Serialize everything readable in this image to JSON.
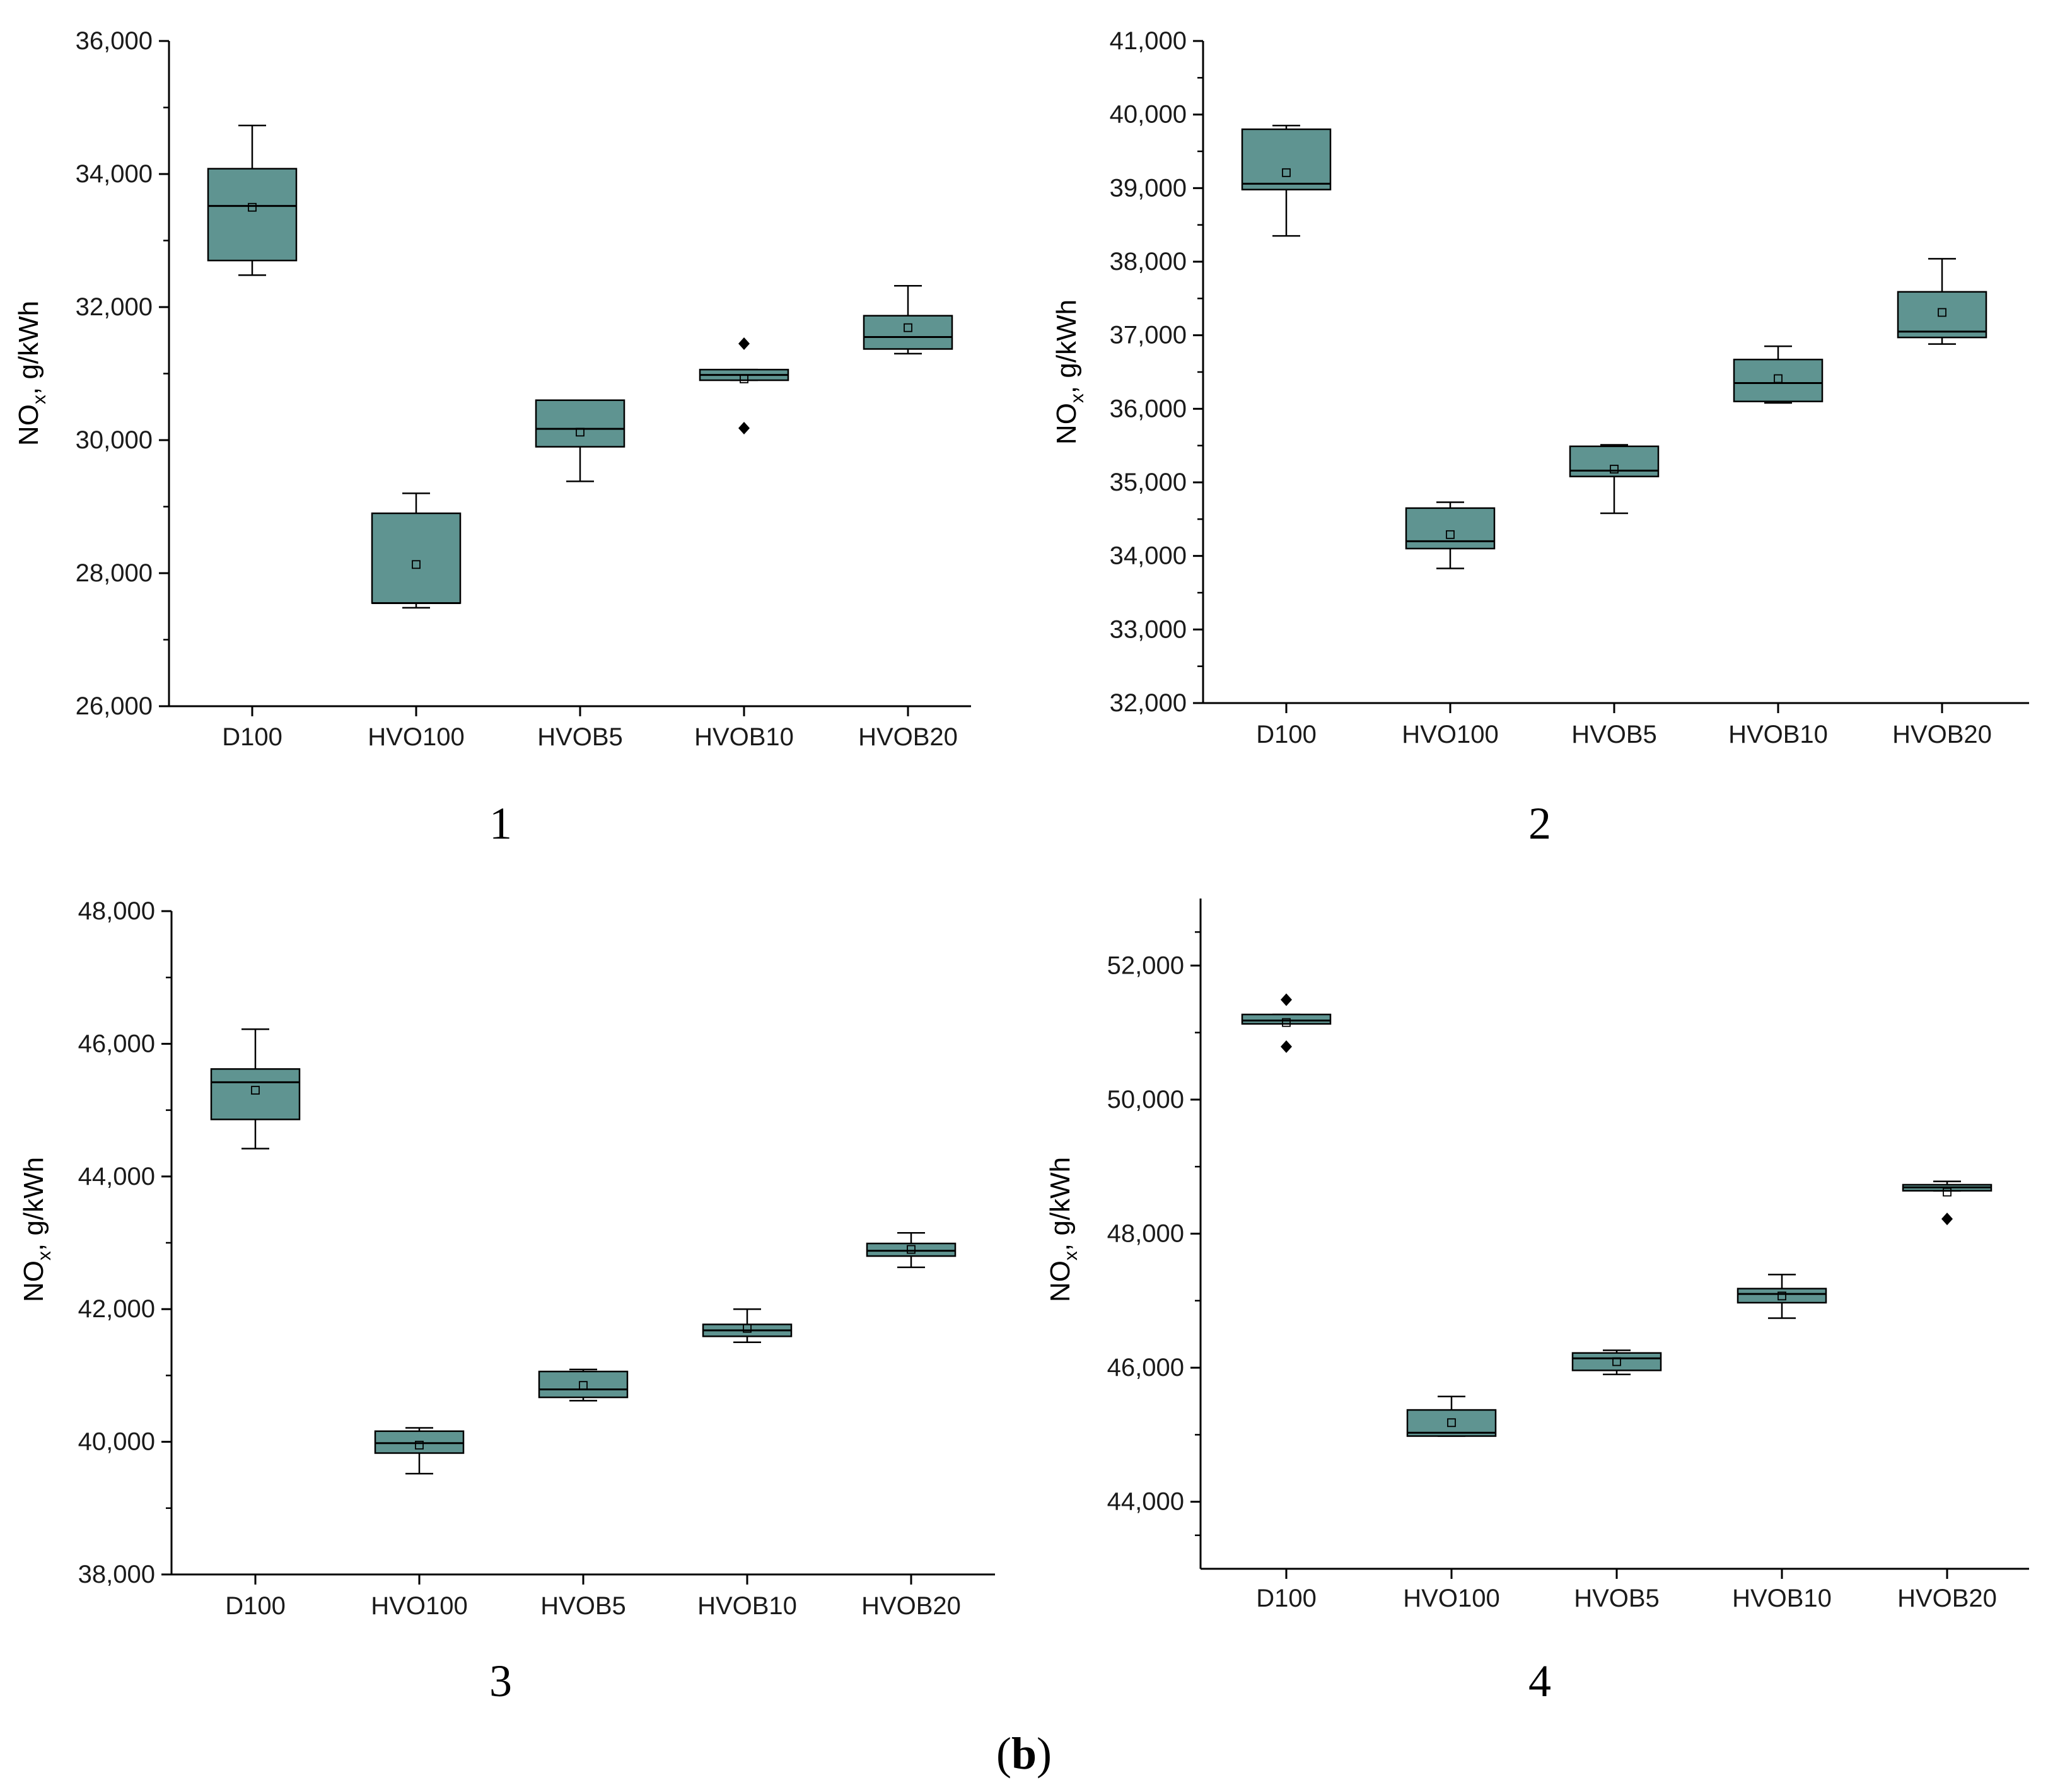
{
  "figure": {
    "label_open": "(",
    "label_letter": "b",
    "label_close": ")",
    "box_fill": "#5f9491",
    "outlier_fill": "#000000"
  },
  "chart_data": [
    {
      "type": "box",
      "panel": "1",
      "ylabel_main": "NO",
      "ylabel_sub": "x",
      "ylabel_rest": ", g/kWh",
      "ylim": [
        26000,
        36000
      ],
      "yticks": [
        26000,
        28000,
        30000,
        32000,
        34000,
        36000
      ],
      "ytick_labels": [
        "26,000",
        "28,000",
        "30,000",
        "32,000",
        "34,000",
        "36,000"
      ],
      "categories": [
        "D100",
        "HVO100",
        "HVOB5",
        "HVOB10",
        "HVOB20"
      ],
      "boxes": [
        {
          "whisker_low": 32480,
          "q1": 32700,
          "median": 33520,
          "q3": 34080,
          "whisker_high": 34730,
          "mean": 33500,
          "outliers": []
        },
        {
          "whisker_low": 27480,
          "q1": 27550,
          "median": 27550,
          "q3": 28900,
          "whisker_high": 29200,
          "mean": 28130,
          "outliers": []
        },
        {
          "whisker_low": 29380,
          "q1": 29900,
          "median": 30170,
          "q3": 30600,
          "whisker_high": 30600,
          "mean": 30120,
          "outliers": []
        },
        {
          "whisker_low": 30900,
          "q1": 30900,
          "median": 30980,
          "q3": 31060,
          "whisker_high": 31060,
          "mean": 30920,
          "outliers": [
            31450,
            30180
          ]
        },
        {
          "whisker_low": 31300,
          "q1": 31370,
          "median": 31550,
          "q3": 31870,
          "whisker_high": 32320,
          "mean": 31690,
          "outliers": []
        }
      ]
    },
    {
      "type": "box",
      "panel": "2",
      "ylabel_main": "NO",
      "ylabel_sub": "x",
      "ylabel_rest": ", g/kWh",
      "ylim": [
        32000,
        41000
      ],
      "yticks": [
        32000,
        33000,
        34000,
        35000,
        36000,
        37000,
        38000,
        39000,
        40000,
        41000
      ],
      "ytick_labels": [
        "32,000",
        "33,000",
        "34,000",
        "35,000",
        "36,000",
        "37,000",
        "38,000",
        "39,000",
        "40,000",
        "41,000"
      ],
      "categories": [
        "D100",
        "HVO100",
        "HVOB5",
        "HVOB10",
        "HVOB20"
      ],
      "boxes": [
        {
          "whisker_low": 38350,
          "q1": 38980,
          "median": 39060,
          "q3": 39800,
          "whisker_high": 39850,
          "mean": 39210,
          "outliers": []
        },
        {
          "whisker_low": 33830,
          "q1": 34100,
          "median": 34200,
          "q3": 34650,
          "whisker_high": 34730,
          "mean": 34290,
          "outliers": []
        },
        {
          "whisker_low": 34580,
          "q1": 35080,
          "median": 35160,
          "q3": 35490,
          "whisker_high": 35510,
          "mean": 35180,
          "outliers": []
        },
        {
          "whisker_low": 36080,
          "q1": 36100,
          "median": 36350,
          "q3": 36670,
          "whisker_high": 36850,
          "mean": 36410,
          "outliers": []
        },
        {
          "whisker_low": 36880,
          "q1": 36970,
          "median": 37050,
          "q3": 37590,
          "whisker_high": 38040,
          "mean": 37310,
          "outliers": []
        }
      ]
    },
    {
      "type": "box",
      "panel": "3",
      "ylabel_main": "NO",
      "ylabel_sub": "x",
      "ylabel_rest": ", g/kWh",
      "ylim": [
        38000,
        48000
      ],
      "yticks": [
        38000,
        40000,
        42000,
        44000,
        46000,
        48000
      ],
      "ytick_labels": [
        "38,000",
        "40,000",
        "42,000",
        "44,000",
        "46,000",
        "48,000"
      ],
      "categories": [
        "D100",
        "HVO100",
        "HVOB5",
        "HVOB10",
        "HVOB20"
      ],
      "boxes": [
        {
          "whisker_low": 44420,
          "q1": 44860,
          "median": 45420,
          "q3": 45620,
          "whisker_high": 46220,
          "mean": 45300,
          "outliers": []
        },
        {
          "whisker_low": 39520,
          "q1": 39830,
          "median": 39980,
          "q3": 40160,
          "whisker_high": 40210,
          "mean": 39950,
          "outliers": []
        },
        {
          "whisker_low": 40620,
          "q1": 40670,
          "median": 40790,
          "q3": 41060,
          "whisker_high": 41090,
          "mean": 40850,
          "outliers": []
        },
        {
          "whisker_low": 41500,
          "q1": 41590,
          "median": 41680,
          "q3": 41770,
          "whisker_high": 42000,
          "mean": 41710,
          "outliers": []
        },
        {
          "whisker_low": 42630,
          "q1": 42800,
          "median": 42880,
          "q3": 42990,
          "whisker_high": 43150,
          "mean": 42900,
          "outliers": []
        }
      ]
    },
    {
      "type": "box",
      "panel": "4",
      "ylabel_main": "NO",
      "ylabel_sub": "x",
      "ylabel_rest": ", g/kWh",
      "ylim": [
        43000,
        53000
      ],
      "yticks": [
        44000,
        46000,
        48000,
        50000,
        52000
      ],
      "ytick_labels": [
        "44,000",
        "46,000",
        "48,000",
        "50,000",
        "52,000"
      ],
      "categories": [
        "D100",
        "HVO100",
        "HVOB5",
        "HVOB10",
        "HVOB20"
      ],
      "boxes": [
        {
          "whisker_low": 51130,
          "q1": 51130,
          "median": 51180,
          "q3": 51270,
          "whisker_high": 51270,
          "mean": 51150,
          "outliers": [
            51490,
            50790
          ]
        },
        {
          "whisker_low": 44980,
          "q1": 44980,
          "median": 45030,
          "q3": 45370,
          "whisker_high": 45570,
          "mean": 45180,
          "outliers": []
        },
        {
          "whisker_low": 45900,
          "q1": 45960,
          "median": 46140,
          "q3": 46220,
          "whisker_high": 46260,
          "mean": 46090,
          "outliers": []
        },
        {
          "whisker_low": 46740,
          "q1": 46970,
          "median": 47100,
          "q3": 47180,
          "whisker_high": 47390,
          "mean": 47070,
          "outliers": []
        },
        {
          "whisker_low": 48640,
          "q1": 48640,
          "median": 48690,
          "q3": 48730,
          "whisker_high": 48780,
          "mean": 48620,
          "outliers": [
            48220
          ]
        }
      ]
    }
  ]
}
